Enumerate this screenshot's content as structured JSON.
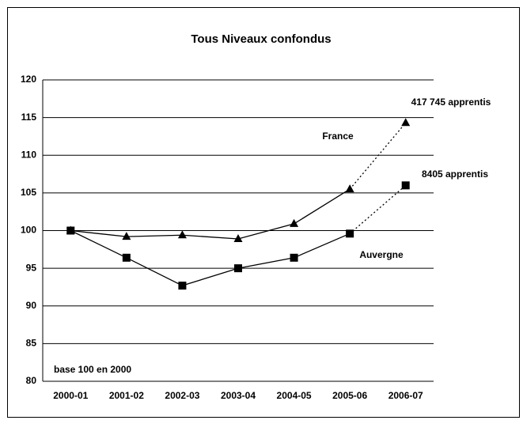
{
  "chart_data": {
    "type": "line",
    "title": "Tous Niveaux confondus",
    "categories": [
      "2000-01",
      "2001-02",
      "2002-03",
      "2003-04",
      "2004-05",
      "2005-06",
      "2006-07"
    ],
    "series": [
      {
        "name": "France",
        "color": "#000000",
        "marker": "triangle",
        "values": [
          100,
          99.2,
          99.4,
          98.9,
          100.9,
          105.5,
          114.3
        ]
      },
      {
        "name": "Auvergne",
        "color": "#000000",
        "marker": "square",
        "values": [
          100,
          96.4,
          92.7,
          95,
          96.4,
          99.6,
          106
        ]
      }
    ],
    "annotations": [
      "417 745 apprentis",
      "8405 apprentis",
      "base 100 en 2000"
    ],
    "dotted_last_segment": true,
    "ylim": [
      80,
      120
    ],
    "yticks": [
      80,
      85,
      90,
      95,
      100,
      105,
      110,
      115,
      120
    ],
    "grid": true
  }
}
